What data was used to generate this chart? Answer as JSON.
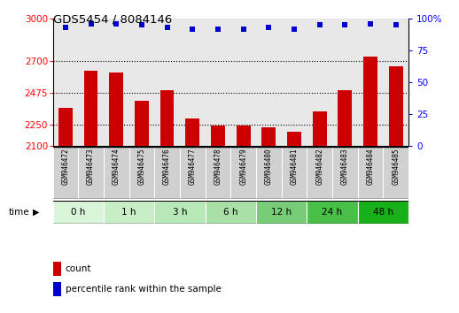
{
  "title": "GDS5454 / 8084146",
  "samples": [
    "GSM946472",
    "GSM946473",
    "GSM946474",
    "GSM946475",
    "GSM946476",
    "GSM946477",
    "GSM946478",
    "GSM946479",
    "GSM946480",
    "GSM946481",
    "GSM946482",
    "GSM946483",
    "GSM946484",
    "GSM946485"
  ],
  "bar_values": [
    2365,
    2630,
    2620,
    2415,
    2490,
    2295,
    2245,
    2245,
    2230,
    2195,
    2340,
    2490,
    2730,
    2660
  ],
  "percentile_values": [
    93,
    96,
    96,
    95,
    93,
    92,
    92,
    92,
    93,
    92,
    95,
    95,
    96,
    95
  ],
  "bar_color": "#CC0000",
  "dot_color": "#0000CC",
  "ylim_left": [
    2100,
    3000
  ],
  "ylim_right": [
    0,
    100
  ],
  "yticks_left": [
    2100,
    2250,
    2475,
    2700,
    3000
  ],
  "yticks_right": [
    0,
    25,
    50,
    75,
    100
  ],
  "time_groups": [
    {
      "label": "0 h",
      "indices": [
        0,
        1
      ]
    },
    {
      "label": "1 h",
      "indices": [
        2,
        3
      ]
    },
    {
      "label": "3 h",
      "indices": [
        4,
        5
      ]
    },
    {
      "label": "6 h",
      "indices": [
        6,
        7
      ]
    },
    {
      "label": "12 h",
      "indices": [
        8,
        9
      ]
    },
    {
      "label": "24 h",
      "indices": [
        10,
        11
      ]
    },
    {
      "label": "48 h",
      "indices": [
        12,
        13
      ]
    }
  ],
  "group_colors": [
    "#d8f5d8",
    "#c8eec8",
    "#b8e8b8",
    "#a8e0a8",
    "#78cc78",
    "#48c048",
    "#18b018"
  ],
  "background_color": "#ffffff",
  "plot_bg_color": "#e8e8e8",
  "sample_box_color": "#d0d0d0",
  "legend_count_label": "count",
  "legend_pct_label": "percentile rank within the sample"
}
